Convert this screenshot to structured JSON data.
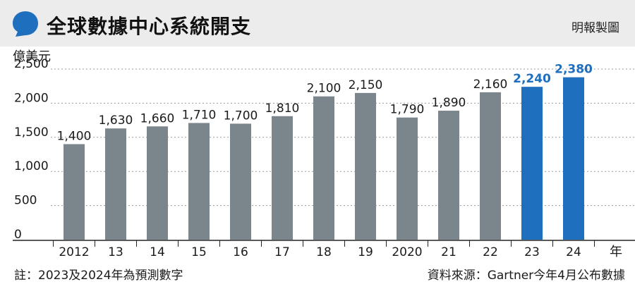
{
  "header": {
    "title": "全球數據中心系統開支",
    "credit": "明報製圖"
  },
  "colors": {
    "actual_bar": "#7b858c",
    "forecast_bar": "#1f6fbf",
    "forecast_label": "#1f6fbf",
    "header_bg": "#ececec",
    "bubble": "#1f6fbf"
  },
  "chart_data": {
    "type": "bar",
    "title": "全球數據中心系統開支",
    "ylabel": "億美元",
    "xlabel": "年",
    "categories": [
      "2012",
      "13",
      "14",
      "15",
      "16",
      "17",
      "18",
      "19",
      "2020",
      "21",
      "22",
      "23",
      "24"
    ],
    "values": [
      1400,
      1630,
      1660,
      1710,
      1700,
      1810,
      2100,
      2150,
      1790,
      1890,
      2160,
      2240,
      2380
    ],
    "data_labels": [
      "1,400",
      "1,630",
      "1,660",
      "1,710",
      "1,700",
      "1,810",
      "2,100",
      "2,150",
      "1,790",
      "1,890",
      "2,160",
      "2,240",
      "2,380"
    ],
    "forecast_categories": [
      "23",
      "24"
    ],
    "yticks": [
      0,
      500,
      1000,
      1500,
      2000,
      2500
    ],
    "ytick_labels": [
      "0",
      "500",
      "1,000",
      "1,500",
      "2,000",
      "2,500"
    ],
    "ylim": [
      0,
      2500
    ],
    "grid": true
  },
  "footer": {
    "note": "註：2023及2024年為預測數字",
    "source": "資料來源：Gartner今年4月公布數據"
  }
}
